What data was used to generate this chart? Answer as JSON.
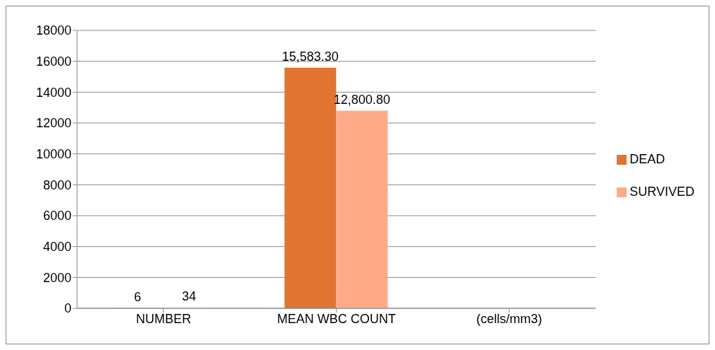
{
  "chart_data": {
    "type": "bar",
    "categories": [
      "NUMBER",
      "MEAN WBC COUNT",
      "(cells/mm3)"
    ],
    "series": [
      {
        "name": "DEAD",
        "color": "#e07430",
        "values": [
          6,
          15583.3,
          null
        ],
        "value_labels": [
          "6",
          "15,583.30",
          null
        ]
      },
      {
        "name": "SURVIVED",
        "color": "#ffab8a",
        "values": [
          34,
          12800.8,
          null
        ],
        "value_labels": [
          "34",
          "12,800.80",
          null
        ]
      }
    ],
    "ylim": [
      0,
      18000
    ],
    "yticks": [
      0,
      2000,
      4000,
      6000,
      8000,
      10000,
      12000,
      14000,
      16000,
      18000
    ],
    "grid": "y",
    "legend": "right"
  }
}
